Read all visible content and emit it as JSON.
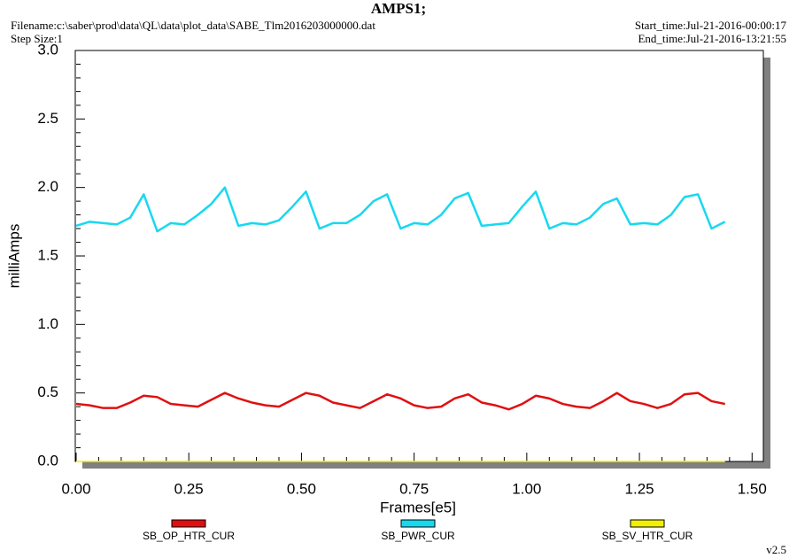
{
  "chart_data": {
    "type": "line",
    "title": "AMPS1;",
    "filename": "Filename:c:\\saber\\prod\\data\\QL\\data\\plot_data\\SABE_Tlm2016203000000.dat",
    "step_size": "Step Size:1",
    "start_time": "Start_time:Jul-21-2016-00:00:17",
    "end_time": "End_time:Jul-21-2016-13:21:55",
    "version": "v2.5",
    "xlabel": "Frames[e5]",
    "ylabel": "milliAmps",
    "xlim": [
      0,
      1.525
    ],
    "ylim": [
      0,
      3
    ],
    "xticks": [
      {
        "value": 0,
        "label": "0.00"
      },
      {
        "value": 0.25,
        "label": "0.25"
      },
      {
        "value": 0.5,
        "label": "0.50"
      },
      {
        "value": 0.75,
        "label": "0.75"
      },
      {
        "value": 1,
        "label": "1.00"
      },
      {
        "value": 1.25,
        "label": "1.25"
      },
      {
        "value": 1.5,
        "label": "1.50"
      }
    ],
    "yticks": [
      {
        "value": 0,
        "label": "0.0"
      },
      0.5,
      {
        "value": 1,
        "label": "1.0"
      },
      1.5,
      {
        "value": 2,
        "label": "2.0"
      },
      2.5,
      {
        "value": 3,
        "label": "3.0"
      }
    ],
    "x": [
      0,
      0.03,
      0.06,
      0.09,
      0.12,
      0.15,
      0.18,
      0.21,
      0.24,
      0.27,
      0.3,
      0.33,
      0.36,
      0.39,
      0.42,
      0.45,
      0.48,
      0.51,
      0.54,
      0.57,
      0.6,
      0.63,
      0.66,
      0.69,
      0.72,
      0.75,
      0.78,
      0.81,
      0.84,
      0.87,
      0.9,
      0.93,
      0.96,
      0.99,
      1.02,
      1.05,
      1.08,
      1.11,
      1.14,
      1.17,
      1.2,
      1.23,
      1.26,
      1.29,
      1.32,
      1.35,
      1.38,
      1.41,
      1.44
    ],
    "series": [
      {
        "name": "SB_OP_HTR_CUR",
        "color": "#e01010",
        "values": [
          0.42,
          0.41,
          0.39,
          0.39,
          0.43,
          0.48,
          0.47,
          0.42,
          0.41,
          0.4,
          0.45,
          0.5,
          0.46,
          0.43,
          0.41,
          0.4,
          0.45,
          0.5,
          0.48,
          0.43,
          0.41,
          0.39,
          0.44,
          0.49,
          0.46,
          0.41,
          0.39,
          0.4,
          0.46,
          0.49,
          0.43,
          0.41,
          0.38,
          0.42,
          0.48,
          0.46,
          0.42,
          0.4,
          0.39,
          0.44,
          0.5,
          0.44,
          0.42,
          0.39,
          0.42,
          0.49,
          0.5,
          0.44,
          0.42
        ]
      },
      {
        "name": "SB_PWR_CUR",
        "color": "#18d8f0",
        "values": [
          1.72,
          1.75,
          1.74,
          1.73,
          1.78,
          1.95,
          1.68,
          1.74,
          1.73,
          1.8,
          1.88,
          2.0,
          1.72,
          1.74,
          1.73,
          1.76,
          1.86,
          1.97,
          1.7,
          1.74,
          1.74,
          1.8,
          1.9,
          1.95,
          1.7,
          1.74,
          1.73,
          1.8,
          1.92,
          1.96,
          1.72,
          1.73,
          1.74,
          1.86,
          1.97,
          1.7,
          1.74,
          1.73,
          1.78,
          1.88,
          1.92,
          1.73,
          1.74,
          1.73,
          1.8,
          1.93,
          1.95,
          1.7,
          1.75
        ]
      },
      {
        "name": "SB_SV_HTR_CUR",
        "color": "#f0f000",
        "values": [
          0,
          0,
          0,
          0,
          0,
          0,
          0,
          0,
          0,
          0,
          0,
          0,
          0,
          0,
          0,
          0,
          0,
          0,
          0,
          0,
          0,
          0,
          0,
          0,
          0,
          0,
          0,
          0,
          0,
          0,
          0,
          0,
          0,
          0,
          0,
          0,
          0,
          0,
          0,
          0,
          0,
          0,
          0,
          0,
          0,
          0,
          0,
          0,
          0
        ]
      }
    ]
  }
}
